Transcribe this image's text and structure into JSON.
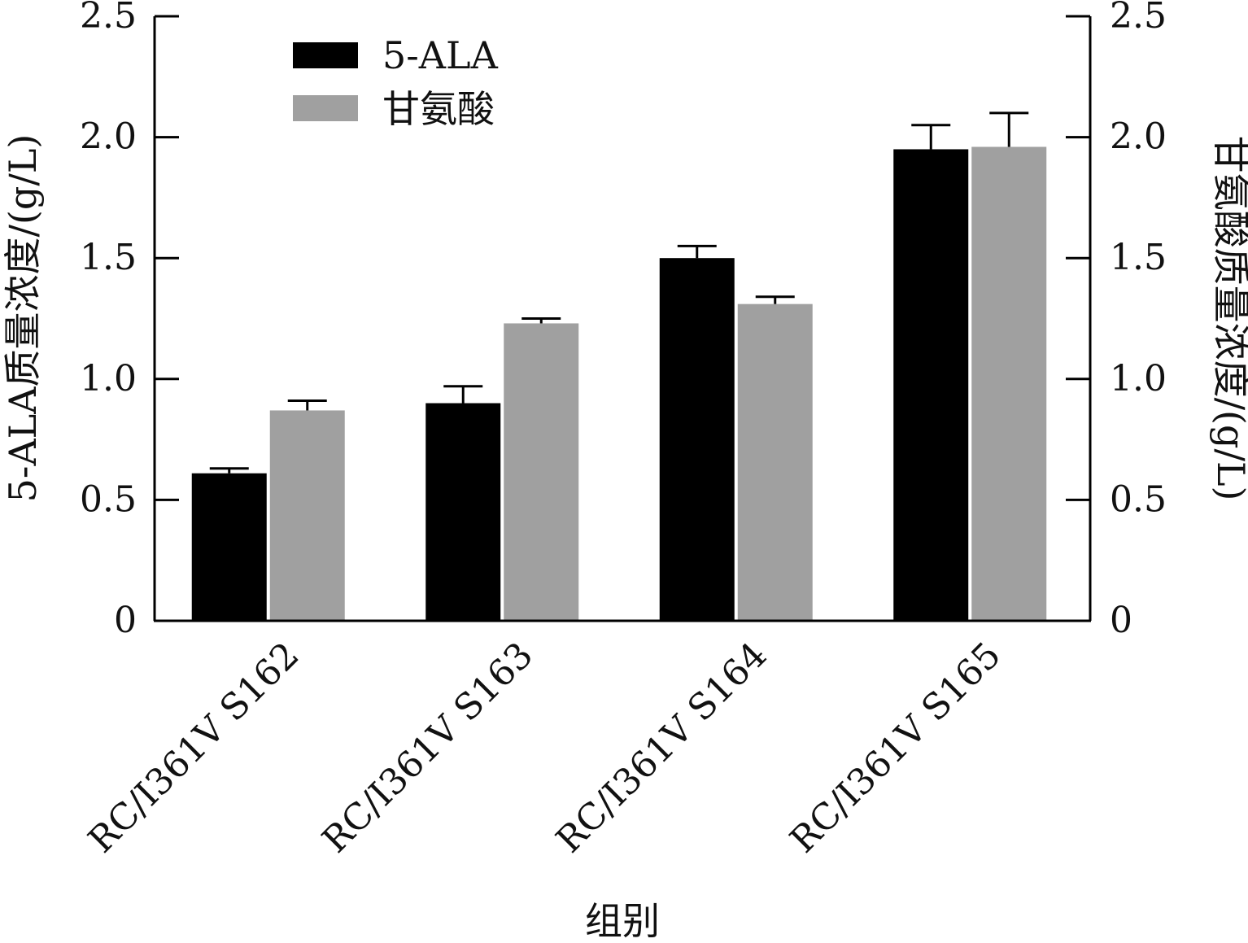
{
  "chart_data": {
    "type": "bar",
    "categories": [
      "RC/I361V S162",
      "RC/I361V S163",
      "RC/I361V S164",
      "RC/I361V S165"
    ],
    "series": [
      {
        "name": "5-ALA",
        "axis": "left",
        "values": [
          0.61,
          0.9,
          1.5,
          1.95
        ],
        "errors": [
          0.02,
          0.07,
          0.05,
          0.1
        ],
        "color": "#000000"
      },
      {
        "name": "甘氨酸",
        "axis": "right",
        "values": [
          0.87,
          1.23,
          1.31,
          1.96
        ],
        "errors": [
          0.04,
          0.02,
          0.03,
          0.14
        ],
        "color": "#a0a0a0"
      }
    ],
    "xlabel": "组别",
    "ylabel": "5-ALA质量浓度/(g/L)",
    "y2label": "甘氨酸质量浓度/(g/L)",
    "ylim": [
      0,
      2.5
    ],
    "y2lim": [
      0,
      2.5
    ],
    "yticks": [
      "0",
      "0.5",
      "1.0",
      "1.5",
      "2.0",
      "2.5"
    ],
    "ytick_values": [
      0,
      0.5,
      1.0,
      1.5,
      2.0,
      2.5
    ],
    "grid": false,
    "legend_position": "top-left"
  }
}
